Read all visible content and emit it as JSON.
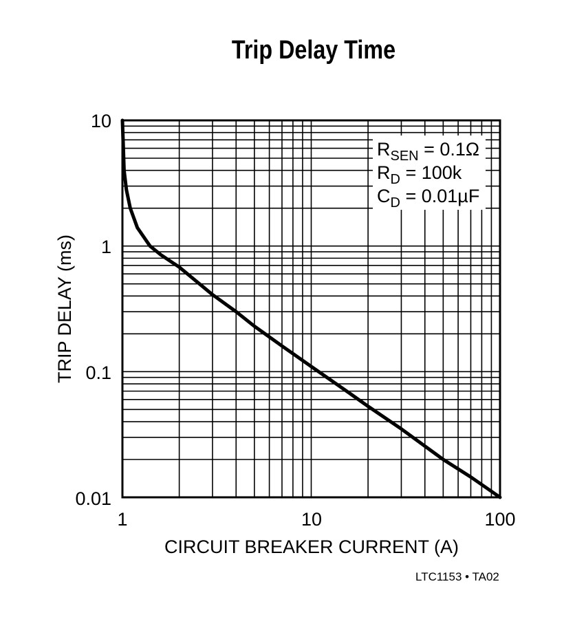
{
  "chart_data": {
    "type": "line",
    "title": "Trip Delay Time",
    "xlabel": "CIRCUIT BREAKER CURRENT (A)",
    "ylabel": "TRIP DELAY (ms)",
    "x_scale": "log",
    "y_scale": "log",
    "xlim": [
      1,
      100
    ],
    "ylim": [
      0.01,
      10
    ],
    "x_ticks": [
      "1",
      "10",
      "100"
    ],
    "y_ticks": [
      "10",
      "1",
      "0.1",
      "0.01"
    ],
    "grid": true,
    "series": [
      {
        "name": "Trip Delay",
        "x": [
          1.0,
          1.02,
          1.05,
          1.1,
          1.2,
          1.4,
          1.6,
          2,
          3,
          4,
          5,
          7,
          10,
          15,
          20,
          30,
          50,
          70,
          100
        ],
        "y": [
          10,
          4.0,
          2.8,
          2.0,
          1.4,
          1.0,
          0.85,
          0.68,
          0.41,
          0.3,
          0.23,
          0.16,
          0.11,
          0.072,
          0.053,
          0.035,
          0.02,
          0.0145,
          0.01
        ]
      }
    ],
    "annotations": [
      "R_SEN = 0.1Ω",
      "R_D = 100k",
      "C_D = 0.01µF"
    ],
    "footer": "LTC1153 • TA02"
  },
  "labels": {
    "title": "Trip Delay Time",
    "xlabel": "CIRCUIT BREAKER CURRENT (A)",
    "ylabel": "TRIP DELAY (ms)",
    "x_tick_1": "1",
    "x_tick_10": "10",
    "x_tick_100": "100",
    "y_tick_10": "10",
    "y_tick_1": "1",
    "y_tick_01": "0.1",
    "y_tick_001": "0.01",
    "note_rsen_main": "R",
    "note_rsen_sub": "SEN",
    "note_rsen_val": " = 0.1Ω",
    "note_rd_main": "R",
    "note_rd_sub": "D",
    "note_rd_val": " = 100k",
    "note_cd_main": "C",
    "note_cd_sub": "D",
    "note_cd_val": " = 0.01µF",
    "footer": "LTC1153 • TA02"
  }
}
